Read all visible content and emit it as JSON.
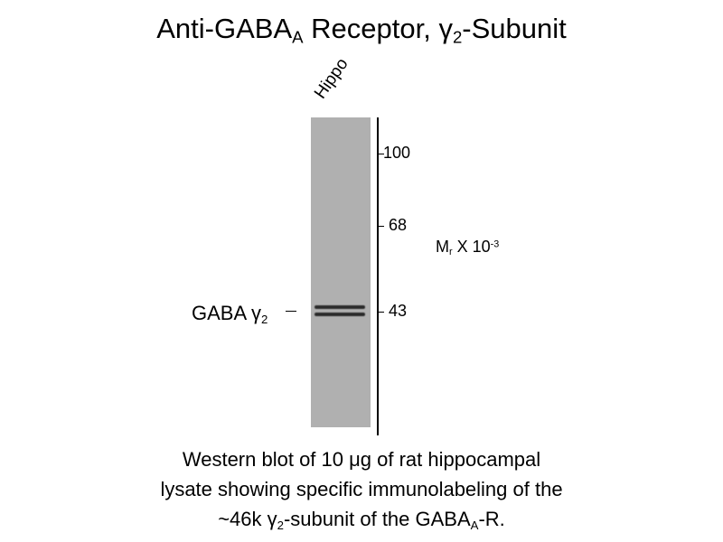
{
  "title": {
    "pre": "Anti-GABA",
    "sub": "A",
    "mid": " Receptor, γ",
    "sub2": "2",
    "post": "-Subunit"
  },
  "lane_label": "Hippo",
  "markers": [
    {
      "label": "100",
      "kda": 100
    },
    {
      "label": "68",
      "kda": 68
    },
    {
      "label": "43",
      "kda": 43
    }
  ],
  "units": {
    "pre": "M",
    "sub": "r",
    "mid": " X 10",
    "sup": "-3"
  },
  "protein_label": {
    "pre": "GABA γ",
    "sub": "2"
  },
  "caption": {
    "line1": "Western blot of 10 μg of rat hippocampal",
    "line2": "lysate showing specific immunolabeling of the",
    "line3_pre": "~46k γ",
    "line3_sub": "2",
    "line3_mid": "-subunit of the GABA",
    "line3_sub2": "A",
    "line3_post": "-R."
  },
  "colors": {
    "lane": "#b0b0b0",
    "band": "#2a2a2a"
  }
}
